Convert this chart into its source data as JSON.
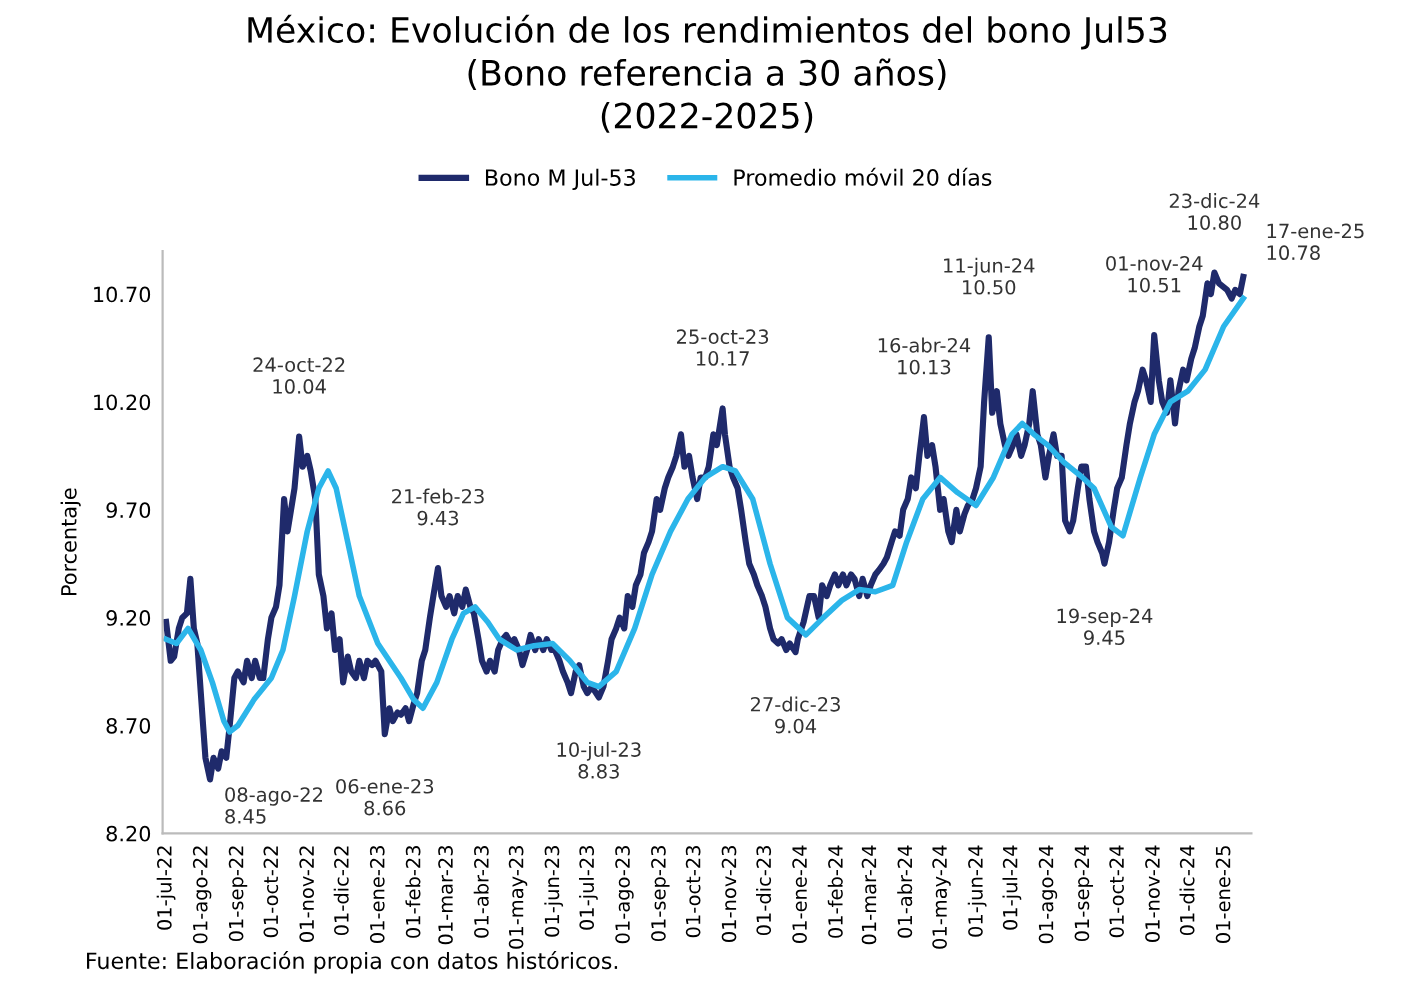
{
  "chart_data": {
    "type": "line",
    "title": "México: Evolución de los rendimientos del bono Jul53\n(Bono referencia a 30 años)\n(2022-2025)",
    "ylabel": "Porcentaje",
    "xlim": [
      "2022-06-28",
      "2025-01-24"
    ],
    "ylim": [
      8.2,
      10.9
    ],
    "yticks": [
      {
        "value": 8.2,
        "label": "8.20"
      },
      {
        "value": 8.7,
        "label": "8.70"
      },
      {
        "value": 9.2,
        "label": "9.20"
      },
      {
        "value": 9.7,
        "label": "9.70"
      },
      {
        "value": 10.2,
        "label": "10.20"
      },
      {
        "value": 10.7,
        "label": "10.70"
      }
    ],
    "xticks": [
      {
        "value": "2022-07-01",
        "label": "01-jul-22"
      },
      {
        "value": "2022-08-01",
        "label": "01-ago-22"
      },
      {
        "value": "2022-09-01",
        "label": "01-sep-22"
      },
      {
        "value": "2022-10-01",
        "label": "01-oct-22"
      },
      {
        "value": "2022-11-01",
        "label": "01-nov-22"
      },
      {
        "value": "2022-12-01",
        "label": "01-dic-22"
      },
      {
        "value": "2023-01-01",
        "label": "01-ene-23"
      },
      {
        "value": "2023-02-01",
        "label": "01-feb-23"
      },
      {
        "value": "2023-03-01",
        "label": "01-mar-23"
      },
      {
        "value": "2023-04-01",
        "label": "01-abr-23"
      },
      {
        "value": "2023-05-01",
        "label": "01-may-23"
      },
      {
        "value": "2023-06-01",
        "label": "01-jun-23"
      },
      {
        "value": "2023-07-01",
        "label": "01-jul-23"
      },
      {
        "value": "2023-08-01",
        "label": "01-ago-23"
      },
      {
        "value": "2023-09-01",
        "label": "01-sep-23"
      },
      {
        "value": "2023-10-01",
        "label": "01-oct-23"
      },
      {
        "value": "2023-11-01",
        "label": "01-nov-23"
      },
      {
        "value": "2023-12-01",
        "label": "01-dic-23"
      },
      {
        "value": "2024-01-01",
        "label": "01-ene-24"
      },
      {
        "value": "2024-02-01",
        "label": "01-feb-24"
      },
      {
        "value": "2024-03-01",
        "label": "01-mar-24"
      },
      {
        "value": "2024-04-01",
        "label": "01-abr-24"
      },
      {
        "value": "2024-05-01",
        "label": "01-may-24"
      },
      {
        "value": "2024-06-01",
        "label": "01-jun-24"
      },
      {
        "value": "2024-07-01",
        "label": "01-jul-24"
      },
      {
        "value": "2024-08-01",
        "label": "01-ago-24"
      },
      {
        "value": "2024-09-01",
        "label": "01-sep-24"
      },
      {
        "value": "2024-10-01",
        "label": "01-oct-24"
      },
      {
        "value": "2024-11-01",
        "label": "01-nov-24"
      },
      {
        "value": "2024-12-01",
        "label": "01-dic-24"
      },
      {
        "value": "2025-01-01",
        "label": "01-ene-25"
      }
    ],
    "grid": false,
    "legend": "top",
    "series": [
      {
        "name": "Bono M Jul-53",
        "color": "#1f2a6b",
        "x": [
          "2022-07-01",
          "2022-07-05",
          "2022-07-08",
          "2022-07-12",
          "2022-07-15",
          "2022-07-19",
          "2022-07-22",
          "2022-07-25",
          "2022-07-28",
          "2022-08-02",
          "2022-08-04",
          "2022-08-08",
          "2022-08-11",
          "2022-08-15",
          "2022-08-18",
          "2022-08-22",
          "2022-08-25",
          "2022-08-29",
          "2022-09-01",
          "2022-09-06",
          "2022-09-09",
          "2022-09-13",
          "2022-09-16",
          "2022-09-20",
          "2022-09-23",
          "2022-09-27",
          "2022-09-30",
          "2022-10-04",
          "2022-10-07",
          "2022-10-11",
          "2022-10-14",
          "2022-10-17",
          "2022-10-20",
          "2022-10-24",
          "2022-10-27",
          "2022-10-31",
          "2022-11-03",
          "2022-11-07",
          "2022-11-10",
          "2022-11-14",
          "2022-11-17",
          "2022-11-21",
          "2022-11-24",
          "2022-11-28",
          "2022-12-01",
          "2022-12-05",
          "2022-12-08",
          "2022-12-12",
          "2022-12-15",
          "2022-12-19",
          "2022-12-22",
          "2022-12-26",
          "2022-12-29",
          "2023-01-03",
          "2023-01-06",
          "2023-01-10",
          "2023-01-13",
          "2023-01-17",
          "2023-01-20",
          "2023-01-24",
          "2023-01-27",
          "2023-01-31",
          "2023-02-03",
          "2023-02-07",
          "2023-02-10",
          "2023-02-14",
          "2023-02-17",
          "2023-02-21",
          "2023-02-24",
          "2023-02-28",
          "2023-03-03",
          "2023-03-07",
          "2023-03-10",
          "2023-03-14",
          "2023-03-17",
          "2023-03-21",
          "2023-03-24",
          "2023-03-28",
          "2023-03-31",
          "2023-04-04",
          "2023-04-07",
          "2023-04-11",
          "2023-04-14",
          "2023-04-18",
          "2023-04-21",
          "2023-04-25",
          "2023-04-28",
          "2023-05-02",
          "2023-05-05",
          "2023-05-09",
          "2023-05-12",
          "2023-05-16",
          "2023-05-19",
          "2023-05-23",
          "2023-05-26",
          "2023-05-30",
          "2023-06-02",
          "2023-06-06",
          "2023-06-09",
          "2023-06-13",
          "2023-06-16",
          "2023-06-20",
          "2023-06-23",
          "2023-06-27",
          "2023-06-30",
          "2023-07-04",
          "2023-07-10",
          "2023-07-14",
          "2023-07-18",
          "2023-07-21",
          "2023-07-25",
          "2023-07-28",
          "2023-08-01",
          "2023-08-04",
          "2023-08-08",
          "2023-08-11",
          "2023-08-15",
          "2023-08-18",
          "2023-08-22",
          "2023-08-25",
          "2023-08-29",
          "2023-09-01",
          "2023-09-05",
          "2023-09-08",
          "2023-09-12",
          "2023-09-15",
          "2023-09-19",
          "2023-09-22",
          "2023-09-26",
          "2023-09-29",
          "2023-10-03",
          "2023-10-06",
          "2023-10-10",
          "2023-10-13",
          "2023-10-17",
          "2023-10-20",
          "2023-10-25",
          "2023-10-27",
          "2023-10-31",
          "2023-11-03",
          "2023-11-07",
          "2023-11-10",
          "2023-11-14",
          "2023-11-17",
          "2023-11-21",
          "2023-11-24",
          "2023-11-28",
          "2023-12-01",
          "2023-12-05",
          "2023-12-08",
          "2023-12-12",
          "2023-12-15",
          "2023-12-19",
          "2023-12-22",
          "2023-12-27",
          "2023-12-29",
          "2024-01-03",
          "2024-01-08",
          "2024-01-12",
          "2024-01-16",
          "2024-01-19",
          "2024-01-23",
          "2024-01-26",
          "2024-01-30",
          "2024-02-02",
          "2024-02-06",
          "2024-02-09",
          "2024-02-13",
          "2024-02-16",
          "2024-02-20",
          "2024-02-23",
          "2024-02-27",
          "2024-03-01",
          "2024-03-05",
          "2024-03-08",
          "2024-03-12",
          "2024-03-15",
          "2024-03-19",
          "2024-03-22",
          "2024-03-26",
          "2024-03-29",
          "2024-04-02",
          "2024-04-05",
          "2024-04-09",
          "2024-04-12",
          "2024-04-16",
          "2024-04-19",
          "2024-04-23",
          "2024-04-26",
          "2024-04-30",
          "2024-05-03",
          "2024-05-07",
          "2024-05-10",
          "2024-05-14",
          "2024-05-17",
          "2024-05-21",
          "2024-05-24",
          "2024-05-28",
          "2024-05-31",
          "2024-06-04",
          "2024-06-07",
          "2024-06-11",
          "2024-06-14",
          "2024-06-18",
          "2024-06-21",
          "2024-06-25",
          "2024-06-28",
          "2024-07-02",
          "2024-07-05",
          "2024-07-09",
          "2024-07-12",
          "2024-07-16",
          "2024-07-19",
          "2024-07-23",
          "2024-07-26",
          "2024-07-30",
          "2024-08-02",
          "2024-08-06",
          "2024-08-09",
          "2024-08-13",
          "2024-08-16",
          "2024-08-20",
          "2024-08-23",
          "2024-08-27",
          "2024-08-30",
          "2024-09-03",
          "2024-09-06",
          "2024-09-10",
          "2024-09-13",
          "2024-09-17",
          "2024-09-19",
          "2024-09-23",
          "2024-09-27",
          "2024-09-30",
          "2024-10-04",
          "2024-10-08",
          "2024-10-11",
          "2024-10-15",
          "2024-10-18",
          "2024-10-22",
          "2024-10-25",
          "2024-10-29",
          "2024-11-01",
          "2024-11-05",
          "2024-11-08",
          "2024-11-12",
          "2024-11-15",
          "2024-11-19",
          "2024-11-22",
          "2024-11-26",
          "2024-11-29",
          "2024-12-03",
          "2024-12-06",
          "2024-12-10",
          "2024-12-13",
          "2024-12-17",
          "2024-12-20",
          "2024-12-23",
          "2024-12-27",
          "2025-01-03",
          "2025-01-07",
          "2025-01-10",
          "2025-01-14",
          "2025-01-17"
        ],
        "values": [
          9.18,
          9.0,
          9.02,
          9.15,
          9.2,
          9.22,
          9.38,
          9.15,
          9.08,
          8.7,
          8.55,
          8.45,
          8.55,
          8.5,
          8.58,
          8.55,
          8.7,
          8.92,
          8.95,
          8.9,
          9.0,
          8.92,
          9.0,
          8.92,
          8.92,
          9.1,
          9.2,
          9.25,
          9.35,
          9.75,
          9.6,
          9.7,
          9.8,
          10.04,
          9.9,
          9.95,
          9.88,
          9.75,
          9.4,
          9.3,
          9.15,
          9.22,
          9.05,
          9.1,
          8.9,
          9.02,
          8.95,
          8.92,
          9.0,
          8.92,
          9.0,
          8.98,
          9.0,
          8.95,
          8.66,
          8.78,
          8.72,
          8.76,
          8.75,
          8.78,
          8.72,
          8.8,
          8.85,
          9.0,
          9.05,
          9.2,
          9.3,
          9.43,
          9.3,
          9.25,
          9.3,
          9.22,
          9.3,
          9.25,
          9.33,
          9.25,
          9.22,
          9.1,
          9.0,
          8.95,
          9.0,
          8.95,
          9.05,
          9.1,
          9.12,
          9.08,
          9.1,
          9.05,
          8.98,
          9.05,
          9.12,
          9.05,
          9.1,
          9.05,
          9.1,
          9.05,
          9.05,
          9.0,
          8.95,
          8.9,
          8.85,
          8.95,
          8.98,
          8.88,
          8.85,
          8.88,
          8.83,
          8.88,
          9.0,
          9.1,
          9.15,
          9.2,
          9.15,
          9.3,
          9.25,
          9.35,
          9.4,
          9.5,
          9.55,
          9.6,
          9.75,
          9.7,
          9.8,
          9.85,
          9.9,
          9.95,
          10.05,
          9.9,
          9.95,
          9.85,
          9.75,
          9.85,
          9.85,
          9.9,
          10.05,
          10.0,
          10.17,
          10.05,
          9.9,
          9.85,
          9.8,
          9.7,
          9.55,
          9.45,
          9.4,
          9.35,
          9.3,
          9.25,
          9.15,
          9.1,
          9.08,
          9.1,
          9.05,
          9.08,
          9.04,
          9.1,
          9.18,
          9.3,
          9.3,
          9.2,
          9.35,
          9.3,
          9.35,
          9.4,
          9.35,
          9.4,
          9.35,
          9.4,
          9.38,
          9.3,
          9.38,
          9.3,
          9.35,
          9.4,
          9.42,
          9.45,
          9.48,
          9.55,
          9.6,
          9.58,
          9.7,
          9.75,
          9.85,
          9.8,
          9.95,
          10.13,
          9.95,
          10.0,
          9.9,
          9.7,
          9.75,
          9.6,
          9.55,
          9.7,
          9.6,
          9.68,
          9.72,
          9.75,
          9.8,
          9.9,
          10.2,
          10.5,
          10.15,
          10.25,
          10.1,
          10.0,
          9.95,
          10.0,
          10.05,
          9.95,
          10.0,
          10.1,
          10.25,
          10.05,
          10.0,
          9.85,
          9.95,
          10.05,
          9.95,
          9.95,
          9.65,
          9.6,
          9.65,
          9.8,
          9.9,
          9.9,
          9.75,
          9.6,
          9.55,
          9.5,
          9.45,
          9.55,
          9.7,
          9.8,
          9.85,
          10.0,
          10.1,
          10.2,
          10.25,
          10.35,
          10.3,
          10.2,
          10.51,
          10.3,
          10.2,
          10.15,
          10.3,
          10.1,
          10.25,
          10.35,
          10.3,
          10.4,
          10.45,
          10.55,
          10.6,
          10.75,
          10.7,
          10.8,
          10.75,
          10.72,
          10.68,
          10.72,
          10.7,
          10.78
        ]
      },
      {
        "name": "Promedio móvil 20 días",
        "color": "#2bb5ea",
        "x": [
          "2022-07-01",
          "2022-07-10",
          "2022-07-20",
          "2022-07-31",
          "2022-08-10",
          "2022-08-20",
          "2022-08-25",
          "2022-09-01",
          "2022-09-15",
          "2022-09-30",
          "2022-10-10",
          "2022-10-20",
          "2022-10-31",
          "2022-11-10",
          "2022-11-18",
          "2022-11-25",
          "2022-12-05",
          "2022-12-15",
          "2022-12-31",
          "2023-01-10",
          "2023-01-20",
          "2023-01-31",
          "2023-02-08",
          "2023-02-20",
          "2023-03-05",
          "2023-03-15",
          "2023-03-25",
          "2023-04-05",
          "2023-04-15",
          "2023-04-30",
          "2023-05-15",
          "2023-05-31",
          "2023-06-15",
          "2023-06-30",
          "2023-07-10",
          "2023-07-25",
          "2023-08-10",
          "2023-08-25",
          "2023-09-10",
          "2023-09-25",
          "2023-10-10",
          "2023-10-25",
          "2023-11-05",
          "2023-11-20",
          "2023-12-05",
          "2023-12-20",
          "2024-01-05",
          "2024-01-20",
          "2024-02-05",
          "2024-02-20",
          "2024-03-05",
          "2024-03-20",
          "2024-04-01",
          "2024-04-15",
          "2024-04-30",
          "2024-05-15",
          "2024-05-31",
          "2024-06-15",
          "2024-07-01",
          "2024-07-10",
          "2024-07-20",
          "2024-08-01",
          "2024-08-15",
          "2024-08-31",
          "2024-09-10",
          "2024-09-25",
          "2024-10-05",
          "2024-10-20",
          "2024-11-01",
          "2024-11-15",
          "2024-11-30",
          "2024-12-15",
          "2024-12-31",
          "2025-01-17"
        ],
        "values": [
          9.1,
          9.08,
          9.15,
          9.05,
          8.9,
          8.72,
          8.67,
          8.7,
          8.82,
          8.92,
          9.05,
          9.3,
          9.6,
          9.8,
          9.88,
          9.8,
          9.55,
          9.3,
          9.08,
          9.0,
          8.92,
          8.82,
          8.78,
          8.9,
          9.1,
          9.22,
          9.25,
          9.18,
          9.1,
          9.05,
          9.07,
          9.08,
          9.0,
          8.9,
          8.88,
          8.95,
          9.15,
          9.4,
          9.6,
          9.75,
          9.85,
          9.9,
          9.88,
          9.75,
          9.45,
          9.2,
          9.12,
          9.2,
          9.28,
          9.33,
          9.32,
          9.35,
          9.55,
          9.75,
          9.85,
          9.78,
          9.72,
          9.85,
          10.05,
          10.1,
          10.05,
          10.0,
          9.92,
          9.85,
          9.8,
          9.62,
          9.58,
          9.85,
          10.05,
          10.2,
          10.25,
          10.35,
          10.55,
          10.68
        ]
      }
    ],
    "annotations": [
      {
        "text": "08-ago-22\n8.45",
        "x": "2022-08-08",
        "y": 8.45
      },
      {
        "text": "24-oct-22\n10.04",
        "x": "2022-10-24",
        "y": 10.04
      },
      {
        "text": "06-ene-23\n8.66",
        "x": "2023-01-06",
        "y": 8.66
      },
      {
        "text": "21-feb-23\n9.43",
        "x": "2023-02-21",
        "y": 9.43
      },
      {
        "text": "10-jul-23\n8.83",
        "x": "2023-07-10",
        "y": 8.83
      },
      {
        "text": "25-oct-23\n10.17",
        "x": "2023-10-25",
        "y": 10.17
      },
      {
        "text": "27-dic-23\n9.04",
        "x": "2023-12-27",
        "y": 9.04
      },
      {
        "text": "16-abr-24\n10.13",
        "x": "2024-04-16",
        "y": 10.13
      },
      {
        "text": "11-jun-24\n10.50",
        "x": "2024-06-11",
        "y": 10.5
      },
      {
        "text": "19-sep-24\n9.45",
        "x": "2024-09-19",
        "y": 9.45
      },
      {
        "text": "01-nov-24\n10.51",
        "x": "2024-11-01",
        "y": 10.51
      },
      {
        "text": "23-dic-24\n10.80",
        "x": "2024-12-23",
        "y": 10.8
      },
      {
        "text": "17-ene-25\n10.78",
        "x": "2025-01-17",
        "y": 10.78
      },
      "Fuente: Elaboración propia con datos históricos."
    ]
  }
}
